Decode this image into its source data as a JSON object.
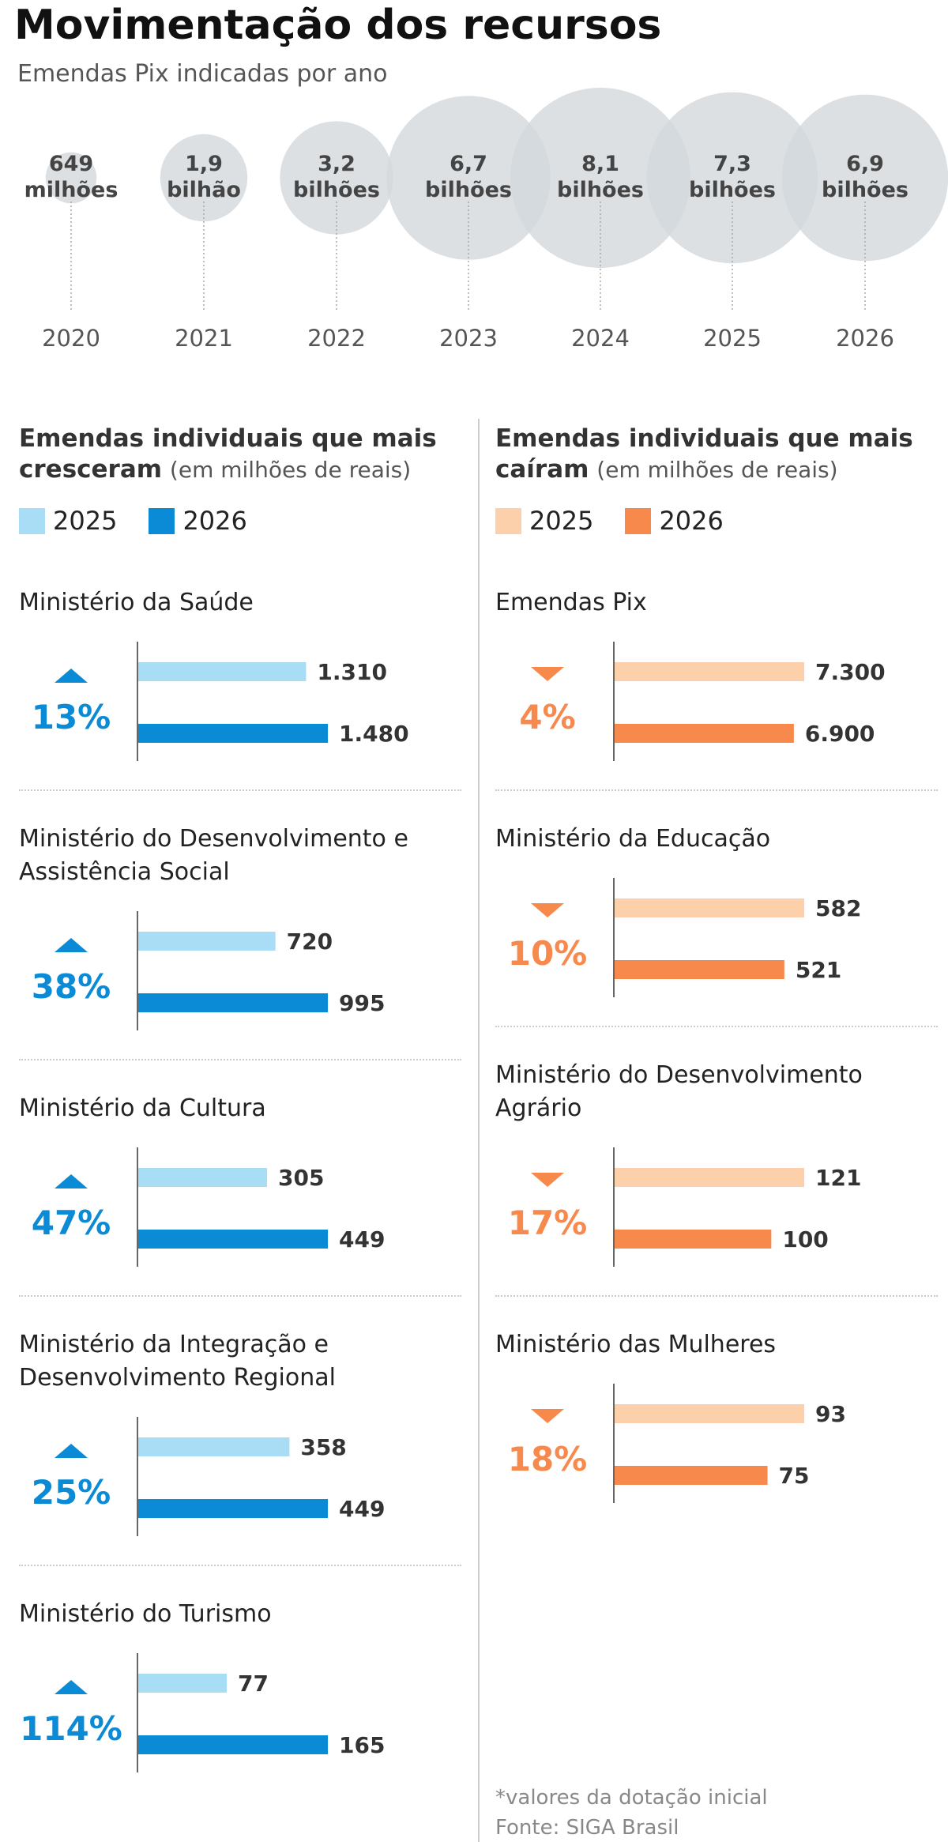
{
  "title": "Movimentação dos recursos",
  "subtitle": "Emendas Pix indicadas por ano",
  "chart_data": [
    {
      "type": "bubble",
      "categories": [
        "2020",
        "2021",
        "2022",
        "2023",
        "2024",
        "2025",
        "2026"
      ],
      "values": [
        649,
        1900,
        3200,
        6700,
        8100,
        7300,
        6900
      ],
      "value_labels": [
        "649 milhões",
        "1,9 bilhão",
        "3,2 bilhões",
        "6,7 bilhões",
        "8,1 bilhões",
        "7,3 bilhões",
        "6,9 bilhões"
      ],
      "color": "#d3d8dc"
    },
    {
      "type": "bar",
      "title": "Emendas individuais que mais cresceram",
      "subtitle": "(em milhões de reais)",
      "trend": "up",
      "categories": [
        "Ministério da Saúde",
        "Ministério do Desenvolvimento e Assistência Social",
        "Ministério da Cultura",
        "Ministério da Integração e Desenvolvimento Regional",
        "Ministério do Turismo"
      ],
      "changes": [
        "13%",
        "38%",
        "47%",
        "25%",
        "114%"
      ],
      "series": [
        {
          "name": "2025",
          "color": "#a9dcf5",
          "values": [
            1310,
            720,
            305,
            358,
            77
          ],
          "value_labels": [
            "1.310",
            "720",
            "305",
            "358",
            "77"
          ]
        },
        {
          "name": "2026",
          "color": "#0b8bd5",
          "values": [
            1480,
            995,
            449,
            449,
            165
          ],
          "value_labels": [
            "1.480",
            "995",
            "449",
            "449",
            "165"
          ]
        }
      ]
    },
    {
      "type": "bar",
      "title": "Emendas individuais que mais caíram",
      "subtitle": "(em milhões de reais)",
      "trend": "down",
      "categories": [
        "Emendas Pix",
        "Ministério da Educação",
        "Ministério do Desenvolvimento Agrário",
        "Ministério das Mulheres"
      ],
      "changes": [
        "4%",
        "10%",
        "17%",
        "18%"
      ],
      "series": [
        {
          "name": "2025",
          "color": "#fdd0ac",
          "values": [
            7300,
            582,
            121,
            93
          ],
          "value_labels": [
            "7.300",
            "582",
            "121",
            "93"
          ]
        },
        {
          "name": "2026",
          "color": "#f7894c",
          "values": [
            6900,
            521,
            100,
            75
          ],
          "value_labels": [
            "6.900",
            "521",
            "100",
            "75"
          ]
        }
      ]
    }
  ],
  "footnote": [
    "*valores da dotação inicial",
    "Fonte: SIGA Brasil"
  ]
}
